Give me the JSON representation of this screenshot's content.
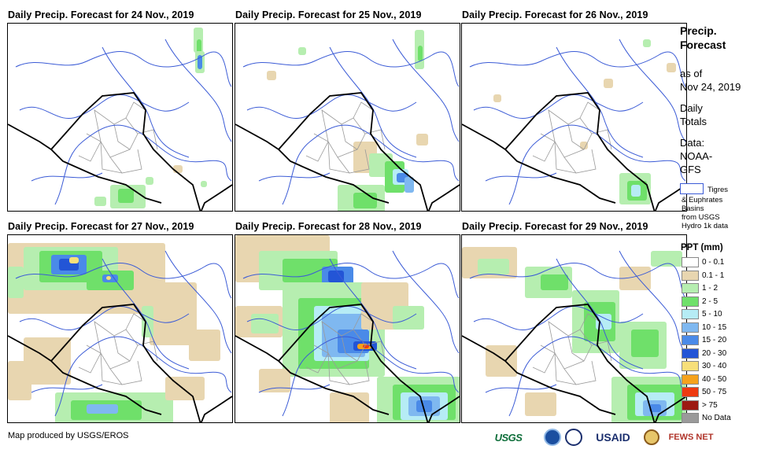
{
  "panels": [
    {
      "title": "Daily Precip. Forecast for 24 Nov., 2019",
      "date": "24 Nov., 2019"
    },
    {
      "title": "Daily Precip. Forecast for 25 Nov., 2019",
      "date": "25 Nov., 2019"
    },
    {
      "title": "Daily Precip. Forecast for 26 Nov., 2019",
      "date": "26 Nov., 2019"
    },
    {
      "title": "Daily Precip. Forecast for 27 Nov., 2019",
      "date": "27 Nov., 2019"
    },
    {
      "title": "Daily Precip. Forecast for 28 Nov., 2019",
      "date": "28 Nov., 2019"
    },
    {
      "title": "Daily Precip. Forecast for 29 Nov., 2019",
      "date": "29 Nov., 2019"
    }
  ],
  "side": {
    "title_line1": "Precip.",
    "title_line2": "Forecast",
    "asof_line1": "as of",
    "asof_line2": "Nov 24, 2019",
    "totals_line1": "Daily",
    "totals_line2": "Totals",
    "data_line1": "Data:",
    "data_line2": "NOAA-",
    "data_line3": "GFS"
  },
  "basin_legend": {
    "line1": "Tigres",
    "line2": "& Euphrates",
    "line3": "Basins",
    "line4": "from USGS",
    "line5": "Hydro 1k data"
  },
  "ppt_legend": {
    "title": "PPT (mm)",
    "classes": [
      {
        "label": "0 - 0.1",
        "color": "#ffffff"
      },
      {
        "label": "0.1 - 1",
        "color": "#e8d6b0"
      },
      {
        "label": "1 - 2",
        "color": "#b6eeb0"
      },
      {
        "label": "2 - 5",
        "color": "#6fe06a"
      },
      {
        "label": "5 - 10",
        "color": "#b6ecf5"
      },
      {
        "label": "10 - 15",
        "color": "#7fb8f0"
      },
      {
        "label": "15 - 20",
        "color": "#4a8ae8"
      },
      {
        "label": "20 - 30",
        "color": "#2355d6"
      },
      {
        "label": "30 - 40",
        "color": "#f7df7a"
      },
      {
        "label": "40 - 50",
        "color": "#f5a21c"
      },
      {
        "label": "50 - 75",
        "color": "#ee3a10"
      },
      {
        "label": "> 75",
        "color": "#9c1a12"
      },
      {
        "label": "No Data",
        "color": "#9a9a9a"
      }
    ]
  },
  "credit": "Map produced by USGS/EROS",
  "logos": [
    "USGS",
    "NOAA",
    "USAID",
    "FEWS NET"
  ]
}
